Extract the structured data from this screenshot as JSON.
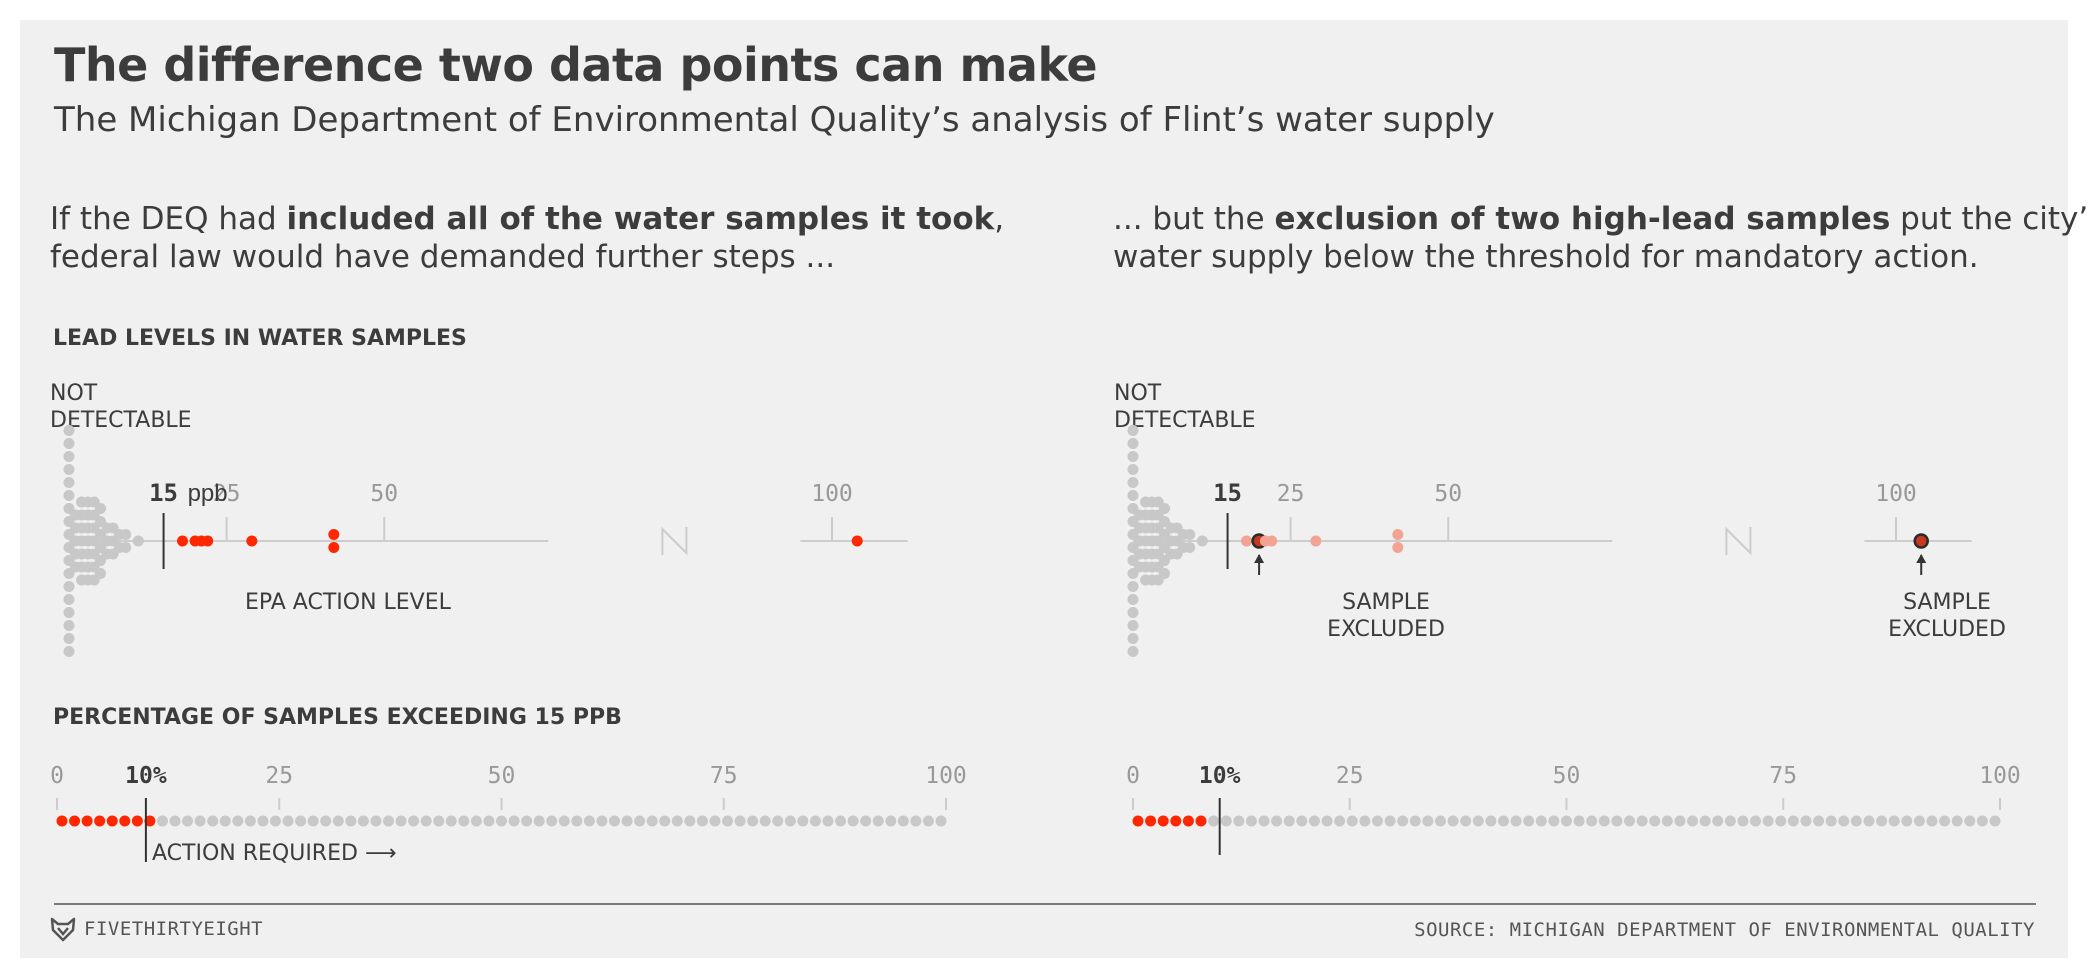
{
  "header": {
    "title": "The difference two data points can make",
    "subtitle": "The Michigan Department of Environmental Quality’s analysis of Flint’s water supply"
  },
  "left_intro": {
    "part1": "If the DEQ had ",
    "bold": "included all of the water samples it took",
    "part2": ",",
    "line2": "federal law would have demanded further steps ..."
  },
  "right_intro": {
    "part1": "... but the ",
    "bold": "exclusion of two high-lead samples",
    "part2": " put the city’s",
    "line2": "water supply below the threshold for mandatory action."
  },
  "section1_label": "LEAD LEVELS IN WATER SAMPLES",
  "section2_label": "PERCENTAGE OF SAMPLES EXCEEDING 15 PPB",
  "not_detectable": [
    "NOT",
    "DETECTABLE"
  ],
  "epa_action_label": "EPA ACTION LEVEL",
  "sample_excluded": [
    "SAMPLE",
    "EXCLUDED"
  ],
  "action_required": "ACTION REQUIRED",
  "footer": {
    "brand": "FIVETHIRTYEIGHT",
    "source": "SOURCE: MICHIGAN DEPARTMENT OF ENVIRONMENTAL QUALITY"
  },
  "colors": {
    "highlight": "#ff2700",
    "highlight_light": "#f2a394",
    "dot_gray": "#c8c8c8",
    "axis_gray": "#999999",
    "text": "#3c3c3c"
  },
  "chart_data": [
    {
      "id": "lead-all",
      "type": "scatter",
      "title": "LEAD LEVELS IN WATER SAMPLES",
      "units": "ppb",
      "threshold": 15,
      "threshold_label": "15",
      "threshold_unit_label": "ppb",
      "ticks": [
        25,
        50,
        100
      ],
      "axis_break_between": [
        50,
        100
      ],
      "not_detectable_count": 18,
      "below_threshold_ppb": [
        1,
        1,
        1,
        1,
        1,
        2,
        2,
        2,
        2,
        2,
        2,
        2,
        3,
        3,
        3,
        3,
        3,
        3,
        3,
        4,
        4,
        4,
        4,
        4,
        4,
        4,
        5,
        5,
        5,
        5,
        5,
        5,
        6,
        6,
        6,
        7,
        7,
        7,
        8,
        8,
        9,
        9,
        11
      ],
      "above_threshold_ppb": [
        18,
        20,
        21,
        22,
        29,
        42,
        42,
        104
      ]
    },
    {
      "id": "lead-excluded",
      "type": "scatter",
      "threshold": 15,
      "threshold_label": "15",
      "ticks": [
        25,
        50,
        100
      ],
      "axis_break_between": [
        50,
        100
      ],
      "not_detectable_count": 18,
      "below_threshold_ppb": [
        1,
        1,
        1,
        1,
        1,
        2,
        2,
        2,
        2,
        2,
        2,
        2,
        3,
        3,
        3,
        3,
        3,
        3,
        3,
        4,
        4,
        4,
        4,
        4,
        4,
        4,
        5,
        5,
        5,
        5,
        5,
        5,
        6,
        6,
        6,
        7,
        7,
        7,
        8,
        8,
        9,
        9,
        11
      ],
      "above_threshold_ppb": [
        18,
        20,
        21,
        22,
        29,
        42,
        42,
        104
      ],
      "excluded_ppb": [
        20,
        104
      ]
    },
    {
      "id": "pct-all",
      "type": "scatter",
      "title": "PERCENTAGE OF SAMPLES EXCEEDING 15 PPB",
      "ticks": [
        0,
        25,
        50,
        75,
        100
      ],
      "threshold_pct": 10,
      "threshold_label": "10%",
      "total_samples": 71,
      "exceeding_samples": 8
    },
    {
      "id": "pct-excluded",
      "type": "scatter",
      "ticks": [
        0,
        25,
        50,
        75,
        100
      ],
      "threshold_pct": 10,
      "threshold_label": "10%",
      "total_samples": 69,
      "exceeding_samples": 6
    }
  ]
}
